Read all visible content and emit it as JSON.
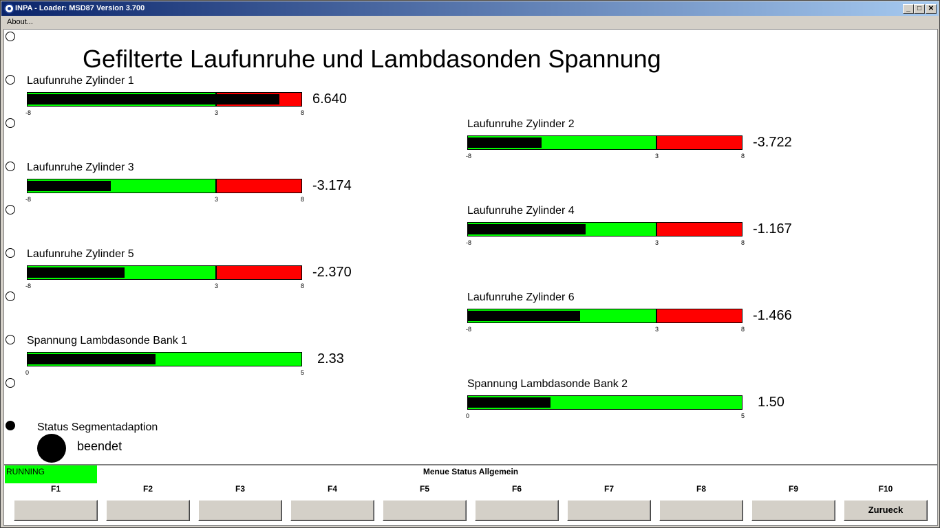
{
  "window": {
    "title": "INPA - Loader:  MSD87 Version 3.700",
    "minimize": "_",
    "maximize": "□",
    "close": "✕"
  },
  "menubar": {
    "about": "About..."
  },
  "page": {
    "title": "Gefilterte Laufunruhe und Lambdasonden Spannung"
  },
  "colors": {
    "ok": "#00ff00",
    "alarm": "#ff0000",
    "fill": "#000000"
  },
  "meters": [
    {
      "label": "Laufunruhe Zylinder 1",
      "value": "6.640",
      "numeric": 6.64,
      "min": -8,
      "threshold": 3,
      "max": 8,
      "min_label": "-8",
      "threshold_label": "3",
      "max_label": "8"
    },
    {
      "label": "Laufunruhe Zylinder 2",
      "value": "-3.722",
      "numeric": -3.722,
      "min": -8,
      "threshold": 3,
      "max": 8,
      "min_label": "-8",
      "threshold_label": "3",
      "max_label": "8"
    },
    {
      "label": "Laufunruhe Zylinder 3",
      "value": "-3.174",
      "numeric": -3.174,
      "min": -8,
      "threshold": 3,
      "max": 8,
      "min_label": "-8",
      "threshold_label": "3",
      "max_label": "8"
    },
    {
      "label": "Laufunruhe Zylinder 4",
      "value": "-1.167",
      "numeric": -1.167,
      "min": -8,
      "threshold": 3,
      "max": 8,
      "min_label": "-8",
      "threshold_label": "3",
      "max_label": "8"
    },
    {
      "label": "Laufunruhe Zylinder 5",
      "value": "-2.370",
      "numeric": -2.37,
      "min": -8,
      "threshold": 3,
      "max": 8,
      "min_label": "-8",
      "threshold_label": "3",
      "max_label": "8"
    },
    {
      "label": "Laufunruhe Zylinder 6",
      "value": "-1.466",
      "numeric": -1.466,
      "min": -8,
      "threshold": 3,
      "max": 8,
      "min_label": "-8",
      "threshold_label": "3",
      "max_label": "8"
    },
    {
      "label": "Spannung Lambdasonde Bank 1",
      "value": "2.33",
      "numeric": 2.33,
      "min": 0,
      "max": 5,
      "min_label": "0",
      "max_label": "5"
    },
    {
      "label": "Spannung Lambdasonde Bank 2",
      "value": "1.50",
      "numeric": 1.5,
      "min": 0,
      "max": 5,
      "min_label": "0",
      "max_label": "5"
    }
  ],
  "status": {
    "label": "Status Segmentadaption",
    "value": "beendet"
  },
  "bottom": {
    "running": "RUNNING",
    "menu_title": "Menue Status Allgemein",
    "fkeys": [
      {
        "key": "F1",
        "label": ""
      },
      {
        "key": "F2",
        "label": ""
      },
      {
        "key": "F3",
        "label": ""
      },
      {
        "key": "F4",
        "label": ""
      },
      {
        "key": "F5",
        "label": ""
      },
      {
        "key": "F6",
        "label": ""
      },
      {
        "key": "F7",
        "label": ""
      },
      {
        "key": "F8",
        "label": ""
      },
      {
        "key": "F9",
        "label": ""
      },
      {
        "key": "F10",
        "label": "Zurueck"
      }
    ]
  }
}
